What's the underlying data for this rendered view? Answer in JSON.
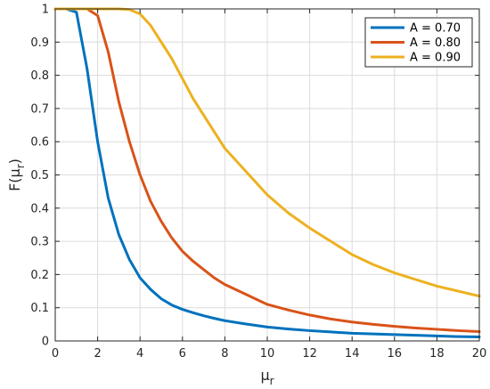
{
  "chart_data": {
    "type": "line",
    "title": "",
    "xlabel": "μ",
    "xlabel_sub": "r",
    "ylabel_prefix": "F(",
    "ylabel_mu": "μ",
    "ylabel_sub": "r",
    "ylabel_suffix": ")",
    "xlim": [
      0,
      20
    ],
    "ylim": [
      0,
      1
    ],
    "xticks": [
      "0",
      "2",
      "4",
      "6",
      "8",
      "10",
      "12",
      "14",
      "16",
      "18",
      "20"
    ],
    "yticks": [
      "0",
      "0.1",
      "0.2",
      "0.3",
      "0.4",
      "0.5",
      "0.6",
      "0.7",
      "0.8",
      "0.9",
      "1"
    ],
    "grid": true,
    "legend_position": "top-right",
    "x": [
      0,
      0.5,
      1,
      1.5,
      2,
      2.5,
      3,
      3.5,
      4,
      4.5,
      5,
      5.5,
      6,
      6.5,
      7,
      7.5,
      8,
      9,
      10,
      11,
      12,
      13,
      14,
      15,
      16,
      17,
      18,
      19,
      20
    ],
    "series": [
      {
        "name": "A = 0.70",
        "color": "#0072BD",
        "values": [
          1,
          1,
          0.99,
          0.82,
          0.6,
          0.43,
          0.32,
          0.245,
          0.19,
          0.155,
          0.127,
          0.108,
          0.095,
          0.085,
          0.076,
          0.068,
          0.061,
          0.051,
          0.042,
          0.036,
          0.031,
          0.027,
          0.023,
          0.021,
          0.019,
          0.017,
          0.015,
          0.013,
          0.012
        ]
      },
      {
        "name": "A = 0.80",
        "color": "#D95319",
        "values": [
          1,
          1,
          1,
          1,
          0.98,
          0.87,
          0.72,
          0.6,
          0.5,
          0.42,
          0.36,
          0.31,
          0.27,
          0.24,
          0.215,
          0.19,
          0.17,
          0.14,
          0.11,
          0.093,
          0.078,
          0.066,
          0.057,
          0.05,
          0.044,
          0.039,
          0.035,
          0.031,
          0.028
        ]
      },
      {
        "name": "A = 0.90",
        "color": "#EDB120",
        "values": [
          1,
          1,
          1,
          1,
          1,
          1,
          1,
          0.998,
          0.985,
          0.95,
          0.9,
          0.85,
          0.79,
          0.73,
          0.68,
          0.63,
          0.58,
          0.51,
          0.44,
          0.385,
          0.34,
          0.3,
          0.26,
          0.23,
          0.205,
          0.185,
          0.165,
          0.15,
          0.135
        ]
      }
    ]
  }
}
